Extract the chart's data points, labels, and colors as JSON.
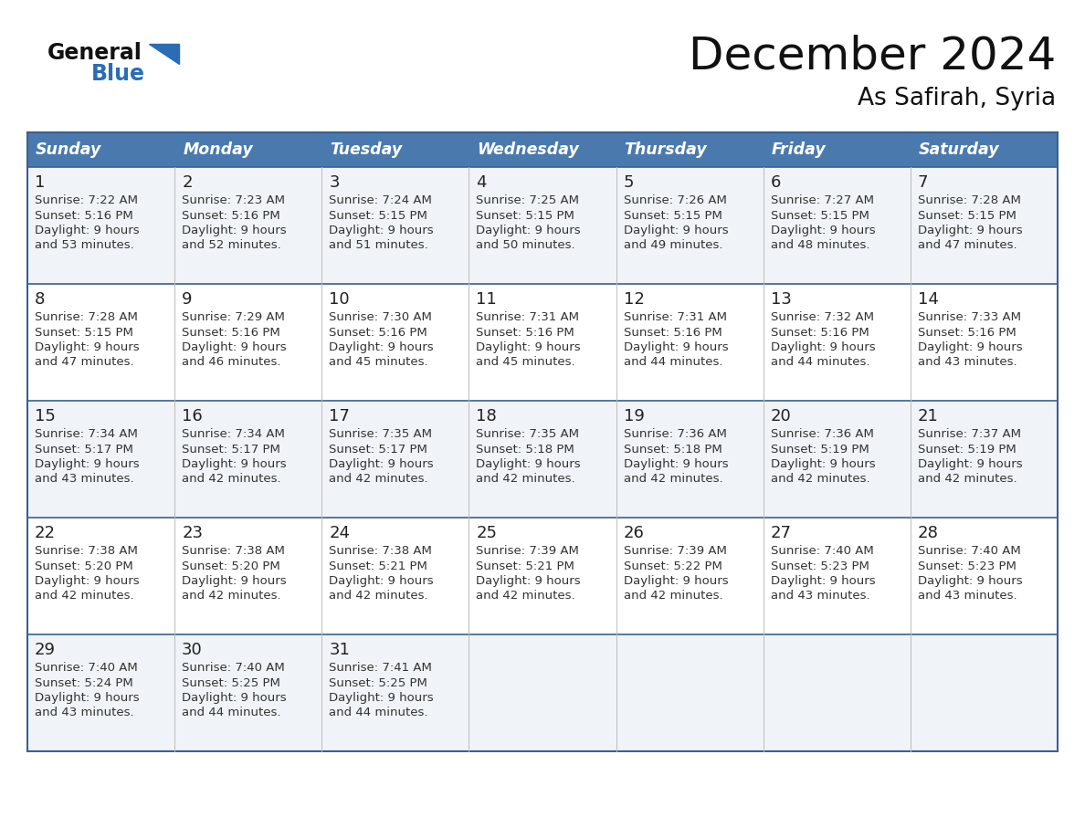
{
  "title": "December 2024",
  "subtitle": "As Safirah, Syria",
  "days_of_week": [
    "Sunday",
    "Monday",
    "Tuesday",
    "Wednesday",
    "Thursday",
    "Friday",
    "Saturday"
  ],
  "header_bg": "#4a7aad",
  "header_text": "#FFFFFF",
  "row_bg_odd": "#f0f4f8",
  "row_bg_even": "#FFFFFF",
  "border_color": "#3a6090",
  "title_color": "#111111",
  "subtitle_color": "#111111",
  "day_number_color": "#222222",
  "detail_color": "#333333",
  "logo_general_color": "#111111",
  "logo_blue_color": "#2a6db5",
  "calendar": [
    [
      {
        "day": "1",
        "sunrise": "7:22 AM",
        "sunset": "5:16 PM",
        "and_mins": "and 53 minutes."
      },
      {
        "day": "2",
        "sunrise": "7:23 AM",
        "sunset": "5:16 PM",
        "and_mins": "and 52 minutes."
      },
      {
        "day": "3",
        "sunrise": "7:24 AM",
        "sunset": "5:15 PM",
        "and_mins": "and 51 minutes."
      },
      {
        "day": "4",
        "sunrise": "7:25 AM",
        "sunset": "5:15 PM",
        "and_mins": "and 50 minutes."
      },
      {
        "day": "5",
        "sunrise": "7:26 AM",
        "sunset": "5:15 PM",
        "and_mins": "and 49 minutes."
      },
      {
        "day": "6",
        "sunrise": "7:27 AM",
        "sunset": "5:15 PM",
        "and_mins": "and 48 minutes."
      },
      {
        "day": "7",
        "sunrise": "7:28 AM",
        "sunset": "5:15 PM",
        "and_mins": "and 47 minutes."
      }
    ],
    [
      {
        "day": "8",
        "sunrise": "7:28 AM",
        "sunset": "5:15 PM",
        "and_mins": "and 47 minutes."
      },
      {
        "day": "9",
        "sunrise": "7:29 AM",
        "sunset": "5:16 PM",
        "and_mins": "and 46 minutes."
      },
      {
        "day": "10",
        "sunrise": "7:30 AM",
        "sunset": "5:16 PM",
        "and_mins": "and 45 minutes."
      },
      {
        "day": "11",
        "sunrise": "7:31 AM",
        "sunset": "5:16 PM",
        "and_mins": "and 45 minutes."
      },
      {
        "day": "12",
        "sunrise": "7:31 AM",
        "sunset": "5:16 PM",
        "and_mins": "and 44 minutes."
      },
      {
        "day": "13",
        "sunrise": "7:32 AM",
        "sunset": "5:16 PM",
        "and_mins": "and 44 minutes."
      },
      {
        "day": "14",
        "sunrise": "7:33 AM",
        "sunset": "5:16 PM",
        "and_mins": "and 43 minutes."
      }
    ],
    [
      {
        "day": "15",
        "sunrise": "7:34 AM",
        "sunset": "5:17 PM",
        "and_mins": "and 43 minutes."
      },
      {
        "day": "16",
        "sunrise": "7:34 AM",
        "sunset": "5:17 PM",
        "and_mins": "and 42 minutes."
      },
      {
        "day": "17",
        "sunrise": "7:35 AM",
        "sunset": "5:17 PM",
        "and_mins": "and 42 minutes."
      },
      {
        "day": "18",
        "sunrise": "7:35 AM",
        "sunset": "5:18 PM",
        "and_mins": "and 42 minutes."
      },
      {
        "day": "19",
        "sunrise": "7:36 AM",
        "sunset": "5:18 PM",
        "and_mins": "and 42 minutes."
      },
      {
        "day": "20",
        "sunrise": "7:36 AM",
        "sunset": "5:19 PM",
        "and_mins": "and 42 minutes."
      },
      {
        "day": "21",
        "sunrise": "7:37 AM",
        "sunset": "5:19 PM",
        "and_mins": "and 42 minutes."
      }
    ],
    [
      {
        "day": "22",
        "sunrise": "7:38 AM",
        "sunset": "5:20 PM",
        "and_mins": "and 42 minutes."
      },
      {
        "day": "23",
        "sunrise": "7:38 AM",
        "sunset": "5:20 PM",
        "and_mins": "and 42 minutes."
      },
      {
        "day": "24",
        "sunrise": "7:38 AM",
        "sunset": "5:21 PM",
        "and_mins": "and 42 minutes."
      },
      {
        "day": "25",
        "sunrise": "7:39 AM",
        "sunset": "5:21 PM",
        "and_mins": "and 42 minutes."
      },
      {
        "day": "26",
        "sunrise": "7:39 AM",
        "sunset": "5:22 PM",
        "and_mins": "and 42 minutes."
      },
      {
        "day": "27",
        "sunrise": "7:40 AM",
        "sunset": "5:23 PM",
        "and_mins": "and 43 minutes."
      },
      {
        "day": "28",
        "sunrise": "7:40 AM",
        "sunset": "5:23 PM",
        "and_mins": "and 43 minutes."
      }
    ],
    [
      {
        "day": "29",
        "sunrise": "7:40 AM",
        "sunset": "5:24 PM",
        "and_mins": "and 43 minutes."
      },
      {
        "day": "30",
        "sunrise": "7:40 AM",
        "sunset": "5:25 PM",
        "and_mins": "and 44 minutes."
      },
      {
        "day": "31",
        "sunrise": "7:41 AM",
        "sunset": "5:25 PM",
        "and_mins": "and 44 minutes."
      },
      null,
      null,
      null,
      null
    ]
  ]
}
